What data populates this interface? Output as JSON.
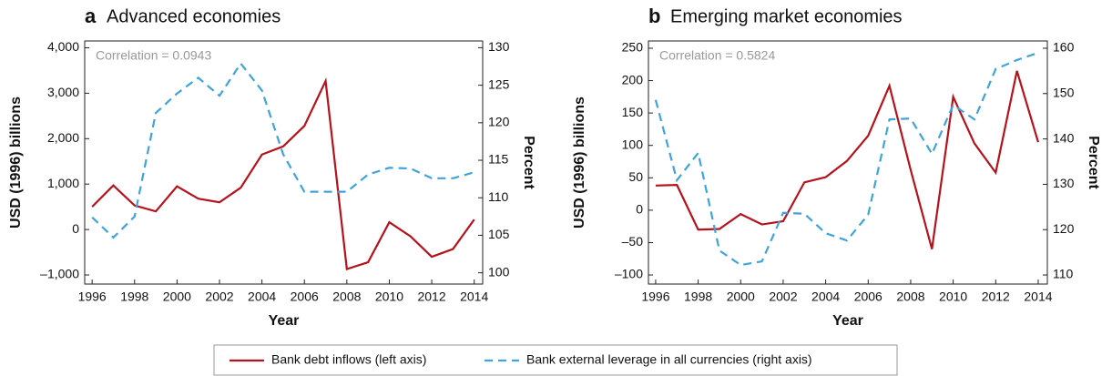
{
  "chart_data": [
    {
      "type": "line",
      "panel_label": "a",
      "title": "Advanced economies",
      "annotation": "Correlation = 0.0943",
      "x_label": "Year",
      "y_label": "USD (1996) billions",
      "y2_label": "Percent",
      "x": [
        1996,
        1997,
        1998,
        1999,
        2000,
        2001,
        2002,
        2003,
        2004,
        2005,
        2006,
        2007,
        2008,
        2009,
        2010,
        2011,
        2012,
        2013,
        2014
      ],
      "xlim": [
        1995.65,
        2014.4
      ],
      "xticks": [
        1996,
        1998,
        2000,
        2002,
        2004,
        2006,
        2008,
        2010,
        2012,
        2014
      ],
      "ylim": [
        -1200,
        4150
      ],
      "yticks": [
        {
          "value": -1000,
          "label": "–1,000"
        },
        0,
        {
          "value": 1000,
          "label": "1,000"
        },
        {
          "value": 2000,
          "label": "2,000"
        },
        {
          "value": 3000,
          "label": "3,000"
        },
        {
          "value": 4000,
          "label": "4,000"
        }
      ],
      "y2lim": [
        98.5,
        130.9
      ],
      "y2ticks": [
        100,
        105,
        110,
        115,
        120,
        125,
        130
      ],
      "series": [
        {
          "color": "#b5121b",
          "style": "solid",
          "axis": "y",
          "values": [
            500,
            970,
            530,
            400,
            950,
            680,
            600,
            920,
            1650,
            1830,
            2280,
            3270,
            -870,
            -720,
            160,
            -150,
            -600,
            -430,
            220
          ]
        },
        {
          "color": "#3fa3dc",
          "style": "dashed",
          "axis": "y2",
          "values": [
            107.4,
            104.7,
            107.5,
            121.3,
            123.9,
            126,
            123.6,
            127.9,
            124.3,
            115.8,
            110.8,
            110.8,
            110.8,
            113.1,
            114,
            113.9,
            112.6,
            112.6,
            113.4
          ]
        }
      ]
    },
    {
      "type": "line",
      "panel_label": "b",
      "title": "Emerging market economies",
      "annotation": "Correlation = 0.5824",
      "x_label": "Year",
      "y_label": "USD (1996) billions",
      "y2_label": "Percent",
      "x": [
        1996,
        1997,
        1998,
        1999,
        2000,
        2001,
        2002,
        2003,
        2004,
        2005,
        2006,
        2007,
        2008,
        2009,
        2010,
        2011,
        2012,
        2013,
        2014
      ],
      "xlim": [
        1995.66,
        2014.43
      ],
      "xticks": [
        1996,
        1998,
        2000,
        2002,
        2004,
        2006,
        2008,
        2010,
        2012,
        2014
      ],
      "ylim": [
        -114,
        261.2
      ],
      "yticks": [
        {
          "value": -100,
          "label": "–100"
        },
        {
          "value": -50,
          "label": "–50"
        },
        0,
        50,
        100,
        150,
        200,
        250
      ],
      "y2lim": [
        108,
        161.6
      ],
      "y2ticks": [
        110,
        120,
        130,
        140,
        150,
        160
      ],
      "series": [
        {
          "color": "#b5121b",
          "style": "solid",
          "axis": "y",
          "values": [
            38,
            39,
            -30,
            -29,
            -6,
            -22,
            -17,
            43,
            51,
            76,
            115,
            192,
            62,
            -60,
            175,
            103,
            58,
            215,
            105
          ]
        },
        {
          "color": "#3fa3dc",
          "style": "dashed",
          "axis": "y2",
          "values": [
            148.6,
            130.9,
            136.9,
            115.4,
            112.2,
            113,
            123.7,
            123.5,
            119.2,
            117.6,
            123.3,
            144.3,
            144.5,
            136.7,
            147.5,
            144.3,
            155.4,
            157.4,
            159
          ]
        }
      ]
    }
  ],
  "legend": [
    "Bank debt inflows (left axis)",
    "Bank external leverage in all currencies (right axis)"
  ]
}
